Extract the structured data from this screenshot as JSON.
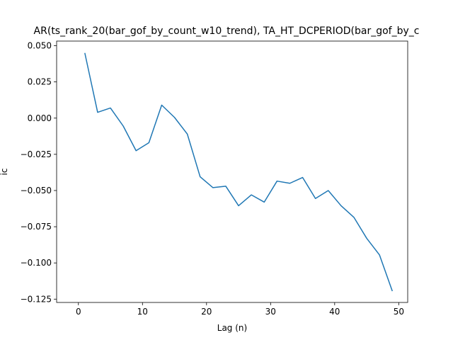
{
  "chart_data": {
    "type": "line",
    "title": "AR(ts_rank_20(bar_gof_by_count_w10_trend), TA_HT_DCPERIOD(bar_gof_by_c",
    "xlabel": "Lag (n)",
    "ylabel": "ic",
    "xlim": [
      -3.4,
      51.4
    ],
    "ylim": [
      -0.1273,
      0.0532
    ],
    "xticks": [
      0,
      10,
      20,
      30,
      40,
      50
    ],
    "xtick_labels": [
      "0",
      "10",
      "20",
      "30",
      "40",
      "50"
    ],
    "yticks": [
      0.05,
      0.025,
      0.0,
      -0.025,
      -0.05,
      -0.075,
      -0.1,
      -0.125
    ],
    "ytick_labels": [
      "0.050",
      "0.025",
      "0.000",
      "−0.025",
      "−0.050",
      "−0.075",
      "−0.100",
      "−0.125"
    ],
    "grid": false,
    "series": [
      {
        "color": "#1f77b4",
        "x": [
          1,
          3,
          5,
          7,
          9,
          11,
          13,
          15,
          17,
          19,
          21,
          23,
          25,
          27,
          29,
          31,
          33,
          35,
          37,
          39,
          41,
          43,
          45,
          47,
          49
        ],
        "y": [
          0.045,
          0.004,
          0.007,
          -0.0055,
          -0.0225,
          -0.017,
          0.009,
          0.0005,
          -0.011,
          -0.0405,
          -0.048,
          -0.047,
          -0.0605,
          -0.053,
          -0.058,
          -0.0435,
          -0.045,
          -0.041,
          -0.0555,
          -0.05,
          -0.0605,
          -0.0685,
          -0.083,
          -0.0945,
          -0.1195
        ]
      }
    ]
  }
}
